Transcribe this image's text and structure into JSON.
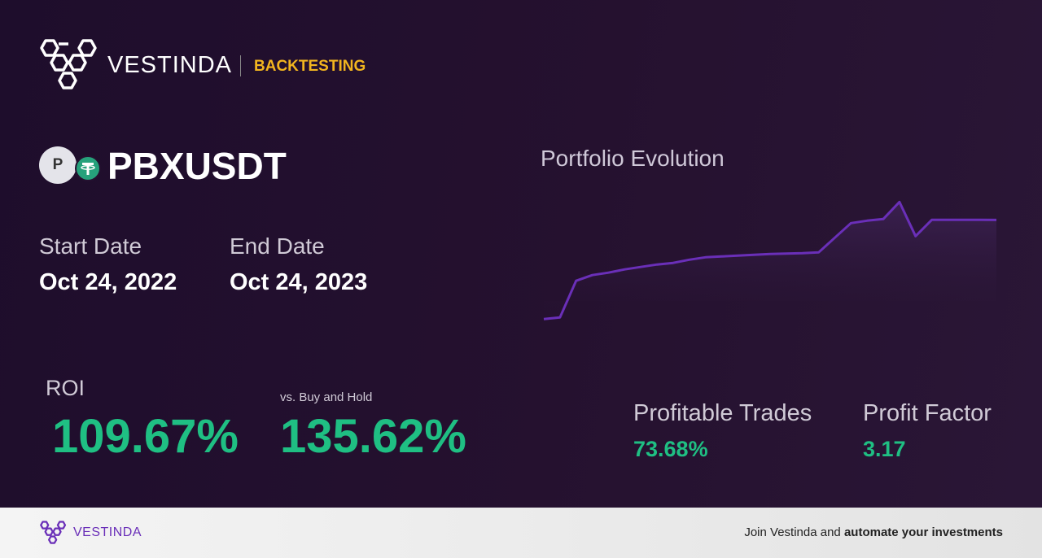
{
  "header": {
    "brand": "VESTINDA",
    "section": "BACKTESTING"
  },
  "pair": {
    "icon_letter": "P",
    "symbol": "PBXUSDT"
  },
  "dates": {
    "start_label": "Start Date",
    "start": "Oct 24, 2022",
    "end_label": "End Date",
    "end": "Oct 24, 2023"
  },
  "stats": {
    "roi_label": "ROI",
    "roi": "109.67%",
    "bh_label": "vs. Buy and Hold",
    "bh": "135.62%",
    "trades_label": "Profitable Trades",
    "trades": "73.68%",
    "pf_label": "Profit Factor",
    "pf": "3.17"
  },
  "chart_data": {
    "type": "line",
    "title": "Portfolio Evolution",
    "color": "#6a2fb8",
    "values": [
      100,
      101.8,
      142.3,
      148.6,
      151.3,
      154.9,
      157.6,
      160.3,
      162.1,
      165.6,
      168.3,
      169.2,
      170.1,
      171.0,
      171.9,
      172.4,
      172.8,
      173.7,
      189.9,
      206.1,
      208.8,
      210.6,
      229.5,
      191.7,
      209.7,
      209.7,
      209.7,
      209.7,
      209.67
    ],
    "ylim": [
      93,
      237
    ]
  },
  "footer": {
    "brand": "VESTINDA",
    "text": "Join Vestinda and",
    "bold": "automate your investments"
  }
}
